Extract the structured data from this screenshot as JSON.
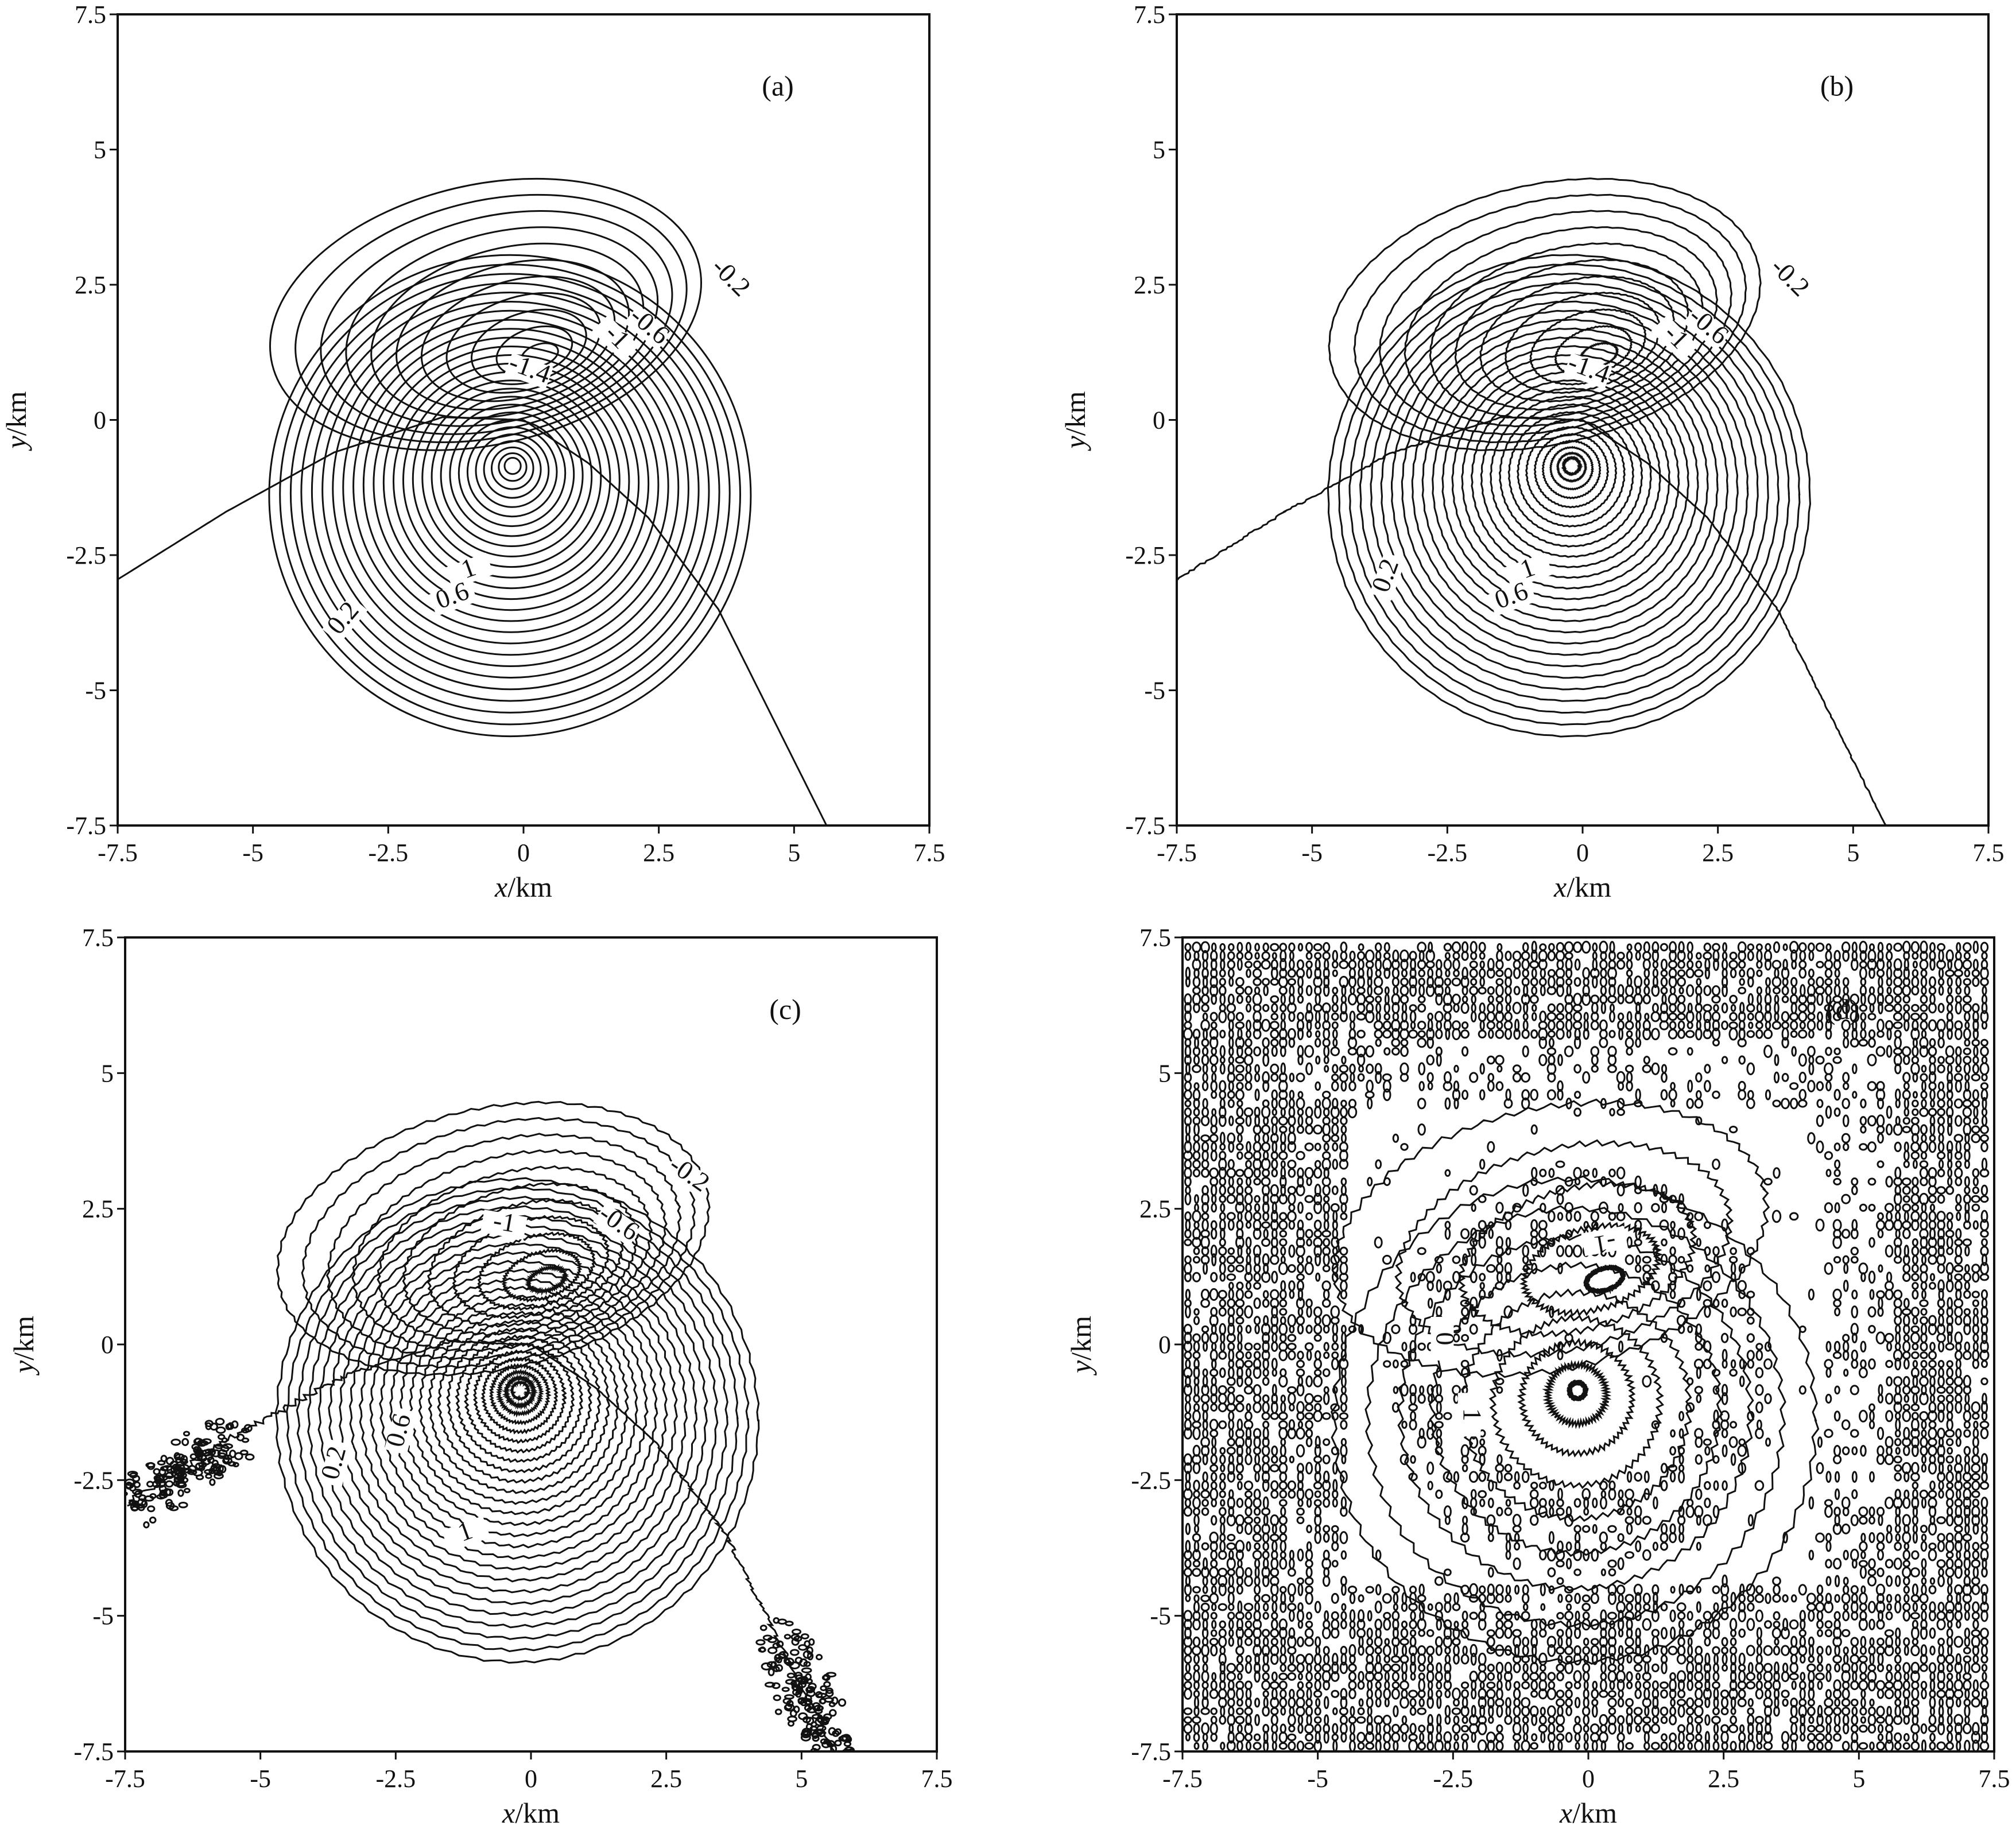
{
  "chart_data": [
    {
      "type": "contour",
      "panel_label": "(a)",
      "xlabel_var": "x",
      "xlabel_unit": "/km",
      "ylabel_var": "y",
      "ylabel_unit": "/km",
      "xlim": [
        -7.5,
        7.5
      ],
      "ylim": [
        -7.5,
        7.5
      ],
      "xticks": [
        "-7.5",
        "-5",
        "-2.5",
        "0",
        "2.5",
        "5",
        "7.5"
      ],
      "yticks": [
        "7.5",
        "5",
        "2.5",
        "0",
        "-2.5",
        "-5",
        "-7.5"
      ],
      "negative_center": [
        0.3,
        1.2
      ],
      "positive_center": [
        -0.2,
        -0.85
      ],
      "contour_labels": [
        {
          "text": "-0.2",
          "x": 3.8,
          "y": 2.5,
          "angle": 45
        },
        {
          "text": "-0.6",
          "x": 2.3,
          "y": 1.6,
          "angle": 40
        },
        {
          "text": "-1",
          "x": 1.7,
          "y": 1.4,
          "angle": 45
        },
        {
          "text": "-1.4",
          "x": 0.1,
          "y": 0.8,
          "angle": 20
        },
        {
          "text": "1",
          "x": -1.0,
          "y": -2.9,
          "angle": -20
        },
        {
          "text": "0.6",
          "x": -1.3,
          "y": -3.4,
          "angle": -20
        },
        {
          "text": "0.2",
          "x": -3.3,
          "y": -3.8,
          "angle": -50
        }
      ],
      "noise": "none"
    },
    {
      "type": "contour",
      "panel_label": "(b)",
      "xlabel_var": "x",
      "xlabel_unit": "/km",
      "ylabel_var": "y",
      "ylabel_unit": "/km",
      "xlim": [
        -7.5,
        7.5
      ],
      "ylim": [
        -7.5,
        7.5
      ],
      "xticks": [
        "-7.5",
        "-5",
        "-2.5",
        "0",
        "2.5",
        "5",
        "7.5"
      ],
      "yticks": [
        "7.5",
        "5",
        "2.5",
        "0",
        "-2.5",
        "-5",
        "-7.5"
      ],
      "negative_center": [
        0.3,
        1.2
      ],
      "positive_center": [
        -0.2,
        -0.85
      ],
      "contour_labels": [
        {
          "text": "-0.2",
          "x": 3.8,
          "y": 2.5,
          "angle": 45
        },
        {
          "text": "-0.6",
          "x": 2.3,
          "y": 1.6,
          "angle": 40
        },
        {
          "text": "-1",
          "x": 1.7,
          "y": 1.4,
          "angle": 45
        },
        {
          "text": "-1.4",
          "x": 0.1,
          "y": 0.8,
          "angle": 20
        },
        {
          "text": "1",
          "x": -1.0,
          "y": -2.9,
          "angle": -20
        },
        {
          "text": "0.6",
          "x": -1.3,
          "y": -3.4,
          "angle": -20
        },
        {
          "text": "0.2",
          "x": -3.6,
          "y": -3.0,
          "angle": -70
        }
      ],
      "noise": "slight"
    },
    {
      "type": "contour",
      "panel_label": "(c)",
      "xlabel_var": "x",
      "xlabel_unit": "/km",
      "ylabel_var": "y",
      "ylabel_unit": "/km",
      "xlim": [
        -7.5,
        7.5
      ],
      "ylim": [
        -7.5,
        7.5
      ],
      "xticks": [
        "-7.5",
        "-5",
        "-2.5",
        "0",
        "2.5",
        "5",
        "7.5"
      ],
      "yticks": [
        "7.5",
        "5",
        "2.5",
        "0",
        "-2.5",
        "-5",
        "-7.5"
      ],
      "negative_center": [
        0.3,
        1.2
      ],
      "positive_center": [
        -0.2,
        -0.85
      ],
      "contour_labels": [
        {
          "text": "-0.2",
          "x": 2.9,
          "y": 3.0,
          "angle": 35
        },
        {
          "text": "-0.6",
          "x": 1.6,
          "y": 2.1,
          "angle": 35
        },
        {
          "text": "-1",
          "x": -0.5,
          "y": 2.1,
          "angle": 10
        },
        {
          "text": "0.6",
          "x": -2.4,
          "y": -1.7,
          "angle": -75
        },
        {
          "text": "0.2",
          "x": -3.6,
          "y": -2.3,
          "angle": -75
        },
        {
          "text": "1",
          "x": -1.2,
          "y": -3.6,
          "angle": -20
        }
      ],
      "noise": "moderate"
    },
    {
      "type": "contour",
      "panel_label": "(d)",
      "xlabel_var": "x",
      "xlabel_unit": "/km",
      "ylabel_var": "y",
      "ylabel_unit": "/km",
      "xlim": [
        -7.5,
        7.5
      ],
      "ylim": [
        -7.5,
        7.5
      ],
      "xticks": [
        "-7.5",
        "-5",
        "-2.5",
        "0",
        "2.5",
        "5",
        "7.5"
      ],
      "yticks": [
        "7.5",
        "5",
        "2.5",
        "0",
        "-2.5",
        "-5",
        "-7.5"
      ],
      "negative_center": [
        0.3,
        1.2
      ],
      "positive_center": [
        -0.2,
        -0.85
      ],
      "contour_labels": [
        {
          "text": "-1",
          "x": 0.3,
          "y": 1.8,
          "angle": 170
        },
        {
          "text": "0",
          "x": -2.7,
          "y": 0.0,
          "angle": 90
        },
        {
          "text": "1",
          "x": -2.2,
          "y": -1.4,
          "angle": 90
        }
      ],
      "noise": "strong"
    }
  ]
}
